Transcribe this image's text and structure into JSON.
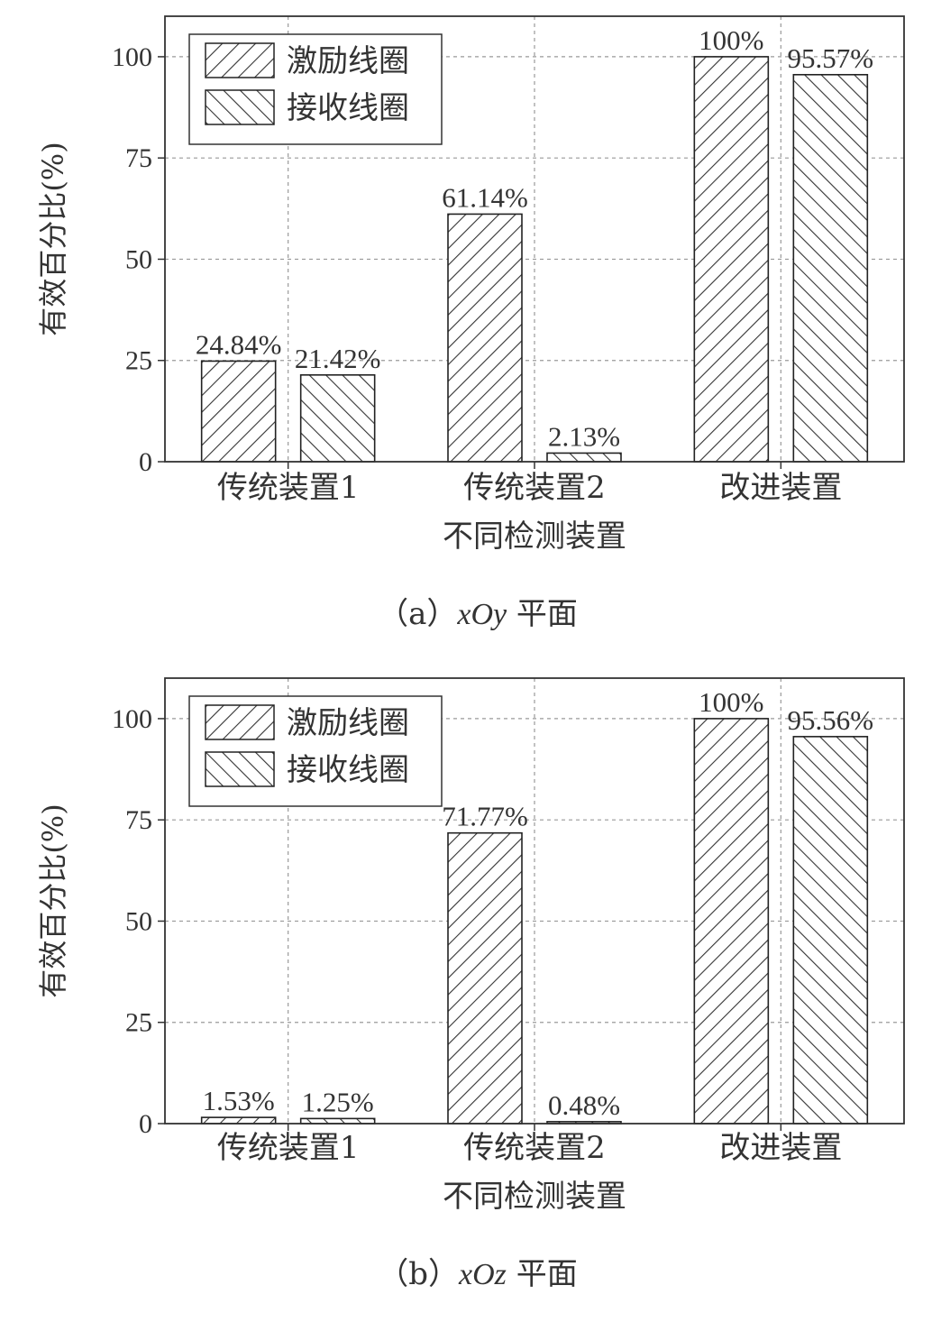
{
  "chart_data": [
    {
      "type": "bar",
      "caption_prefix": "（a）",
      "caption_var": "xOy",
      "caption_suffix": " 平面",
      "categories": [
        "传统装置1",
        "传统装置2",
        "改进装置"
      ],
      "series": [
        {
          "name": "激励线圈",
          "values": [
            24.84,
            61.14,
            100
          ],
          "labels": [
            "24.84%",
            "61.14%",
            "100%"
          ]
        },
        {
          "name": "接收线圈",
          "values": [
            21.42,
            2.13,
            95.57
          ],
          "labels": [
            "21.42%",
            "2.13%",
            "95.57%"
          ]
        }
      ],
      "xlabel": "不同检测装置",
      "ylabel": "有效百分比(%)",
      "ylim": [
        0,
        110
      ],
      "yticks": [
        0,
        25,
        50,
        75,
        100
      ],
      "grid": true,
      "legend_position": "top-left"
    },
    {
      "type": "bar",
      "caption_prefix": "（b）",
      "caption_var": "xOz",
      "caption_suffix": " 平面",
      "categories": [
        "传统装置1",
        "传统装置2",
        "改进装置"
      ],
      "series": [
        {
          "name": "激励线圈",
          "values": [
            1.53,
            71.77,
            100
          ],
          "labels": [
            "1.53%",
            "71.77%",
            "100%"
          ]
        },
        {
          "name": "接收线圈",
          "values": [
            1.25,
            0.48,
            95.56
          ],
          "labels": [
            "1.25%",
            "0.48%",
            "95.56%"
          ]
        }
      ],
      "xlabel": "不同检测装置",
      "ylabel": "有效百分比(%)",
      "ylim": [
        0,
        110
      ],
      "yticks": [
        0,
        25,
        50,
        75,
        100
      ],
      "grid": true,
      "legend_position": "top-left"
    }
  ]
}
